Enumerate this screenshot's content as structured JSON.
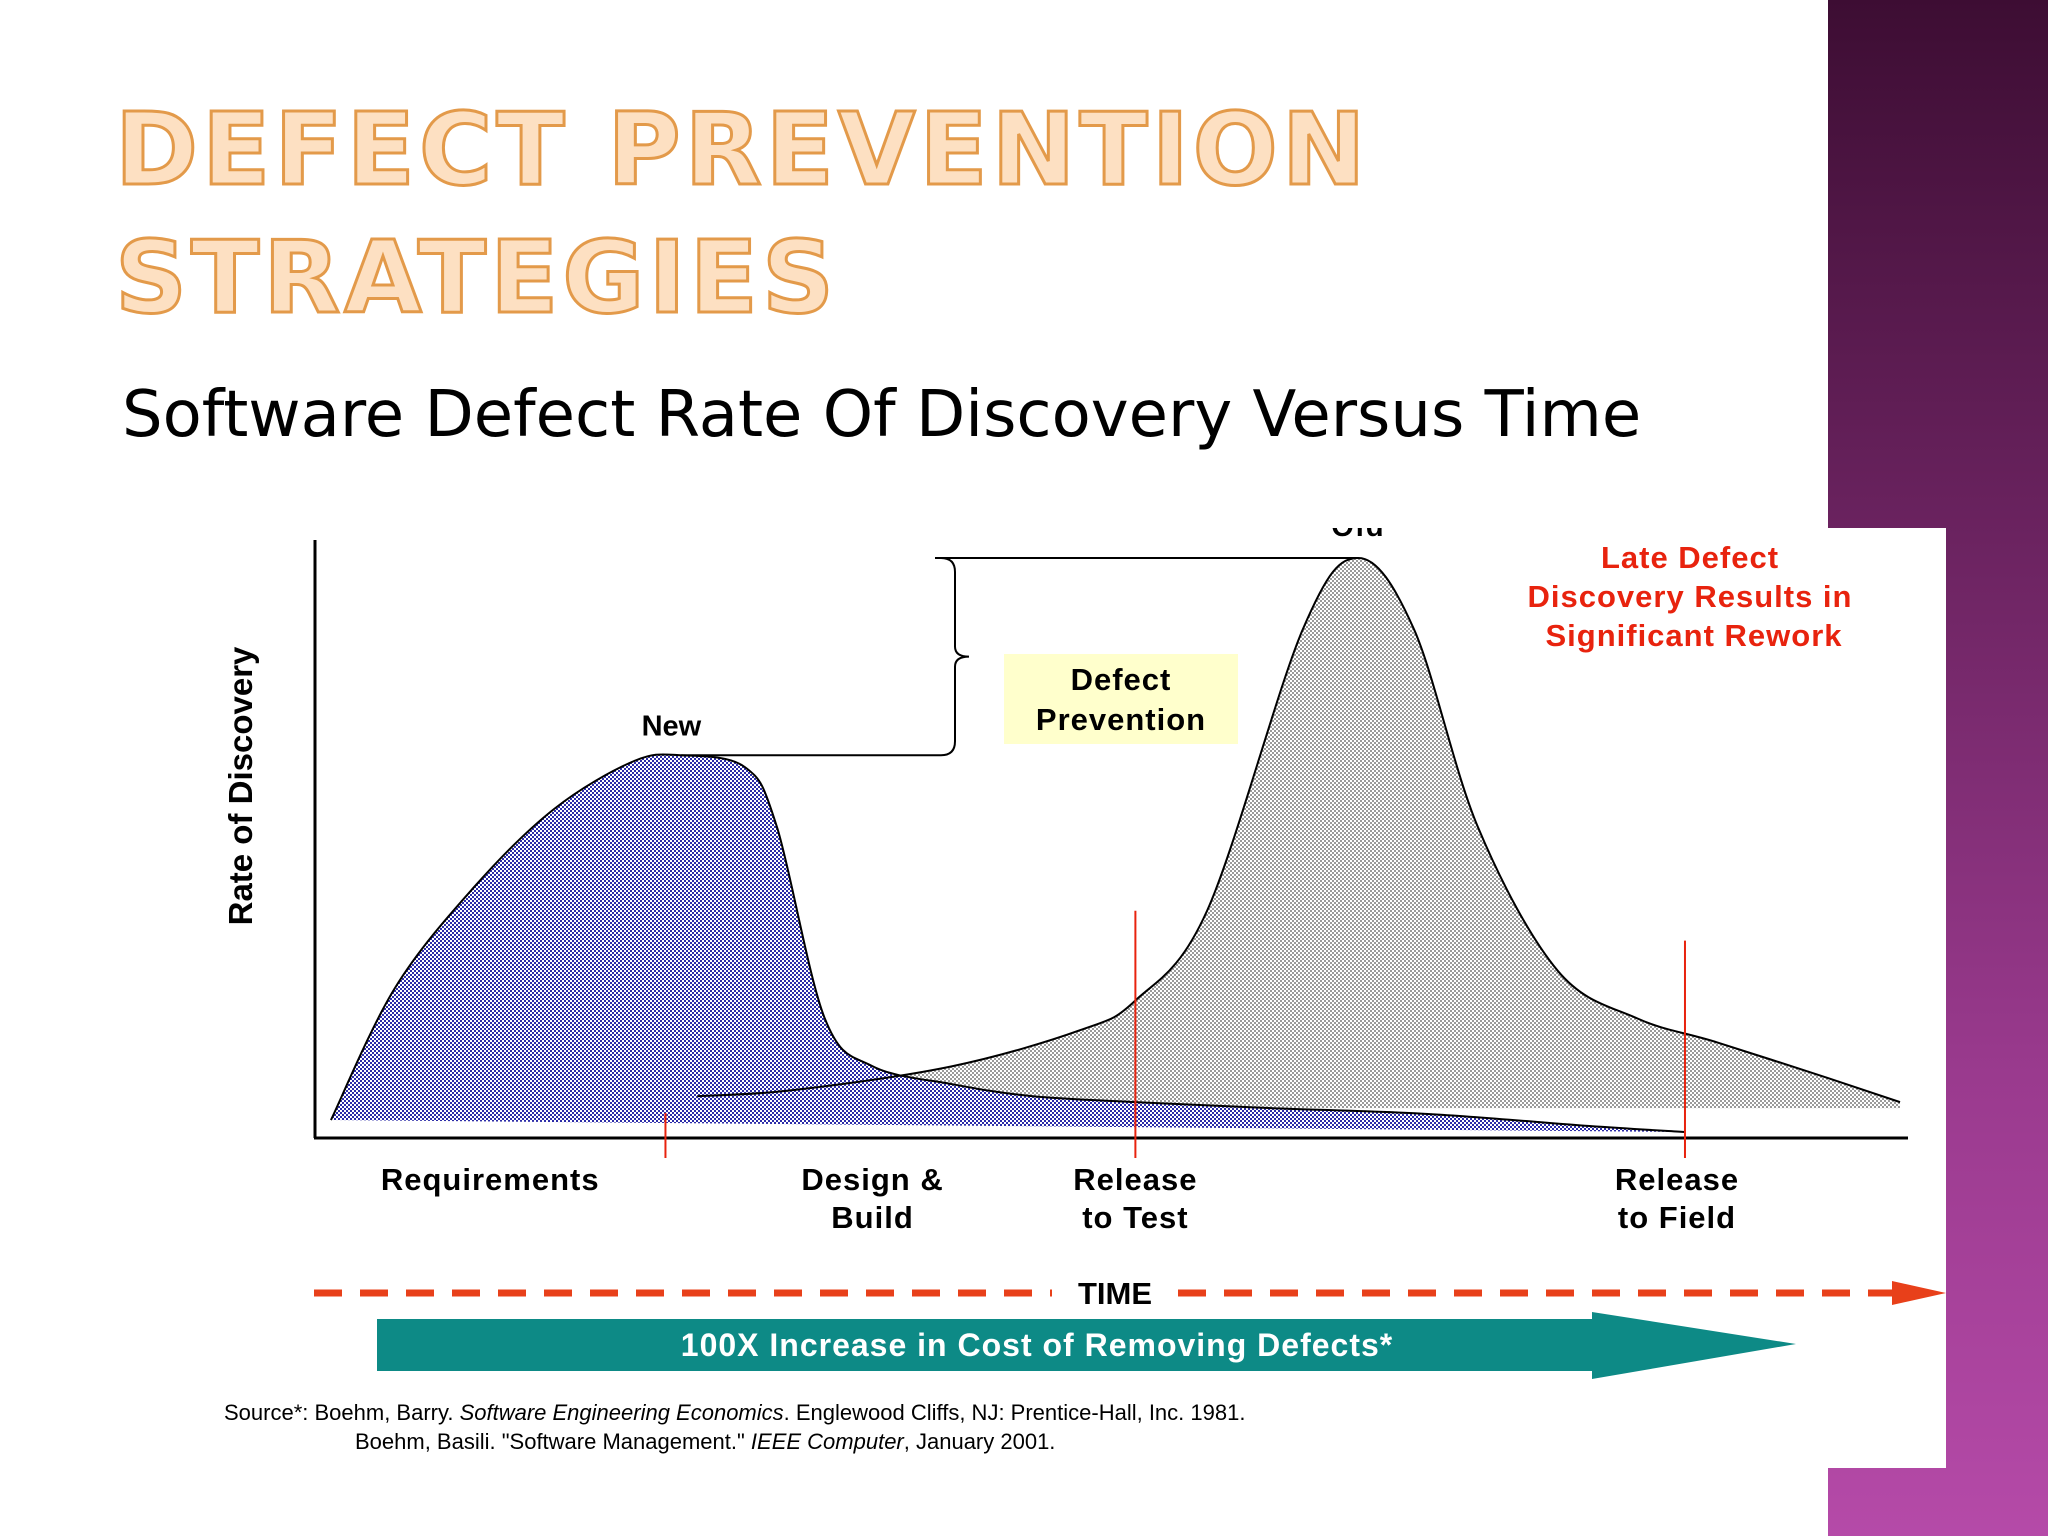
{
  "slide": {
    "title_line1": "Defect Prevention",
    "title_line2": "Strategies",
    "subtitle": "Software Defect Rate Of Discovery Versus Time"
  },
  "colors": {
    "new_fill": "#3c3cb4",
    "old_fill": "#cfcfcf",
    "accent_red": "#e8230e",
    "teal": "#0d8a86",
    "band": "#6b2360",
    "title_fill": "#fde0c2",
    "callout_bg": "#ffffcc"
  },
  "chart_data": {
    "type": "area",
    "title": "Software Defect Rate Of Discovery Versus Time",
    "ylabel": "Rate of Discovery",
    "xlabel": "TIME",
    "xlim": [
      0,
      100
    ],
    "ylim": [
      0,
      100
    ],
    "phases": [
      {
        "label_line1": "Requirements",
        "label_line2": "",
        "x": 11
      },
      {
        "label_line1": "Design &",
        "label_line2": "Build",
        "x": 35
      },
      {
        "label_line1": "Release",
        "label_line2": "to Test",
        "x": 51.5
      },
      {
        "label_line1": "Release",
        "label_line2": "to Field",
        "x": 85.5
      }
    ],
    "phase_markers": [
      22,
      51.5,
      86
    ],
    "series": [
      {
        "name": "New",
        "label": "New",
        "x": [
          1,
          5,
          10,
          15,
          20,
          23,
          27,
          29,
          32,
          35,
          40,
          45,
          51.5,
          60,
          70,
          80,
          86
        ],
        "values": [
          3,
          25,
          42,
          55,
          63,
          64,
          62,
          52,
          20,
          12,
          9,
          7,
          6,
          5,
          4,
          2,
          1
        ]
      },
      {
        "name": "Old",
        "label": "Old",
        "x": [
          24,
          30,
          40,
          48,
          51.5,
          56,
          62,
          65.5,
          69,
          73,
          78,
          83,
          88,
          95,
          99.5
        ],
        "values": [
          7,
          8,
          12,
          18,
          23,
          38,
          85,
          97,
          85,
          52,
          28,
          20,
          16,
          10,
          6
        ]
      }
    ],
    "annotations": {
      "old_peak_label": "Old",
      "new_peak_label": "New",
      "defect_prevention_line1": "Defect",
      "defect_prevention_line2": "Prevention",
      "late_defect_line1": "Late Defect",
      "late_defect_line2": "Discovery Results in",
      "late_defect_line3": "Significant Rework",
      "cost_arrow_text": "100X Increase in Cost of Removing Defects*"
    },
    "source": {
      "line1_prefix": "Source*:  Boehm, Barry. ",
      "line1_italic": "Software Engineering Economics",
      "line1_suffix": ". Englewood Cliffs, NJ: Prentice-Hall, Inc. 1981.",
      "line2_prefix": "Boehm, Basili. \"Software Management.\" ",
      "line2_italic": "IEEE Computer",
      "line2_suffix": ", January 2001."
    }
  }
}
